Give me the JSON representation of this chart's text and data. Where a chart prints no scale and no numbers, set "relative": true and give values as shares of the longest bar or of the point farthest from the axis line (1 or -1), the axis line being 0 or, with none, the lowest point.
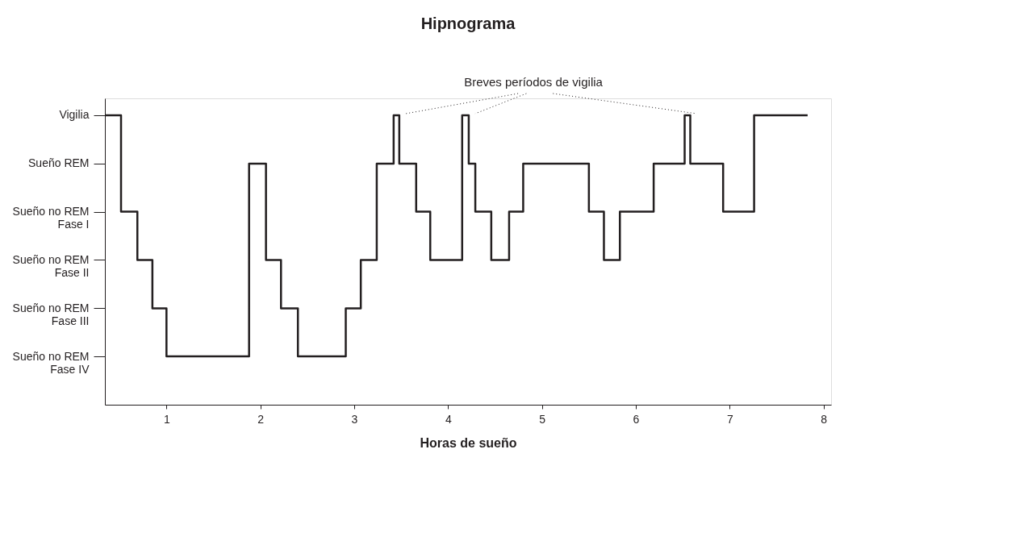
{
  "chart_data": {
    "type": "step",
    "title": "Hipnograma",
    "xlabel": "Horas de sueño",
    "y_categories": [
      "Vigilia",
      "Sueño REM",
      "Sueño no REM\nFase I",
      "Sueño no REM\nFase II",
      "Sueño no REM\nFase III",
      "Sueño no REM\nFase IV"
    ],
    "x": [
      0.344,
      0.516,
      0.69,
      0.85,
      1.0,
      1.88,
      2.06,
      2.22,
      2.4,
      2.91,
      3.07,
      3.24,
      3.42,
      3.48,
      3.66,
      3.81,
      4.15,
      4.22,
      4.29,
      4.46,
      4.65,
      4.8,
      5.5,
      5.66,
      5.83,
      6.19,
      6.52,
      6.58,
      6.93,
      7.26,
      7.83
    ],
    "relative": true,
    "series": [
      {
        "color": "#231f20",
        "values": [
          1,
          0.667,
          0.5,
          0.333,
          0.167,
          0.833,
          0.5,
          0.333,
          0.167,
          0.333,
          0.5,
          0.833,
          1,
          0.833,
          0.667,
          0.5,
          1,
          0.833,
          0.667,
          0.5,
          0.667,
          0.833,
          0.667,
          0.5,
          0.667,
          0.833,
          1,
          0.833,
          0.667,
          1,
          1
        ]
      }
    ],
    "xlim": [
      0.344,
      8.08
    ],
    "xticks": [
      1,
      2,
      3,
      4,
      5,
      6,
      7,
      8
    ],
    "annotations": [
      "Breves períodos de vigilia"
    ],
    "grid": false,
    "line_style": "solid"
  }
}
